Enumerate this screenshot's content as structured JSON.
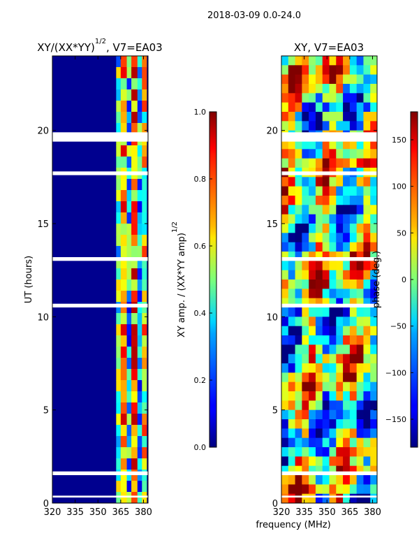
{
  "figure_title": "2018-03-09 0.0-24.0",
  "chart_data": [
    {
      "type": "heatmap",
      "title": "XY/(XX*YY)^(1/2), V7=EA03",
      "title_main": "XY/(XX*YY)",
      "title_sup": "1/2",
      "title_rest": ", V7=EA03",
      "ylabel": "UT (hours)",
      "xlabel": "",
      "xlim": [
        320,
        383
      ],
      "ylim": [
        0,
        24
      ],
      "xticks": [
        320,
        335,
        350,
        365,
        380
      ],
      "yticks": [
        0,
        5,
        10,
        15,
        20
      ],
      "colormap": "jet",
      "data_description": "Mostly low amplitude (~0.05) from 320-362 MHz; elevated amplitude 0.3-0.8 in bands between ~362 and 382 MHz",
      "gap_intervals_hours": [
        [
          19.4,
          19.9
        ],
        [
          17.6,
          17.8
        ],
        [
          13.0,
          13.2
        ],
        [
          10.5,
          10.7
        ],
        [
          1.5,
          1.7
        ],
        [
          0.3,
          0.4
        ]
      ],
      "colorbar": {
        "label_main": "XY amp. / (XX*YY amp)",
        "label_sup": "1/2",
        "label": "XY amp. / (XX*YY amp)^(1/2)",
        "range": [
          0.0,
          1.0
        ],
        "ticks": [
          "0.0",
          "0.2",
          "0.4",
          "0.6",
          "0.8",
          "1.0"
        ]
      }
    },
    {
      "type": "heatmap",
      "title": "XY, V7=EA03",
      "ylabel": "",
      "xlabel": "frequency (MHz)",
      "xlim": [
        320,
        383
      ],
      "ylim": [
        0,
        24
      ],
      "xticks": [
        320,
        335,
        350,
        365,
        380
      ],
      "yticks": [
        0,
        5,
        10,
        15,
        20
      ],
      "colormap": "jet",
      "data_description": "Phase in degrees, spanning -180 to 180 with large-scale variation over time and frequency",
      "gap_intervals_hours": [
        [
          19.4,
          19.9
        ],
        [
          17.6,
          17.8
        ],
        [
          13.0,
          13.2
        ],
        [
          10.5,
          10.7
        ],
        [
          1.5,
          1.7
        ],
        [
          0.3,
          0.4
        ]
      ],
      "colorbar": {
        "label": "phase (deg.)",
        "range": [
          -180,
          180
        ],
        "ticks": [
          "150",
          "100",
          "50",
          "0",
          "−50",
          "−100",
          "−150"
        ]
      }
    }
  ]
}
